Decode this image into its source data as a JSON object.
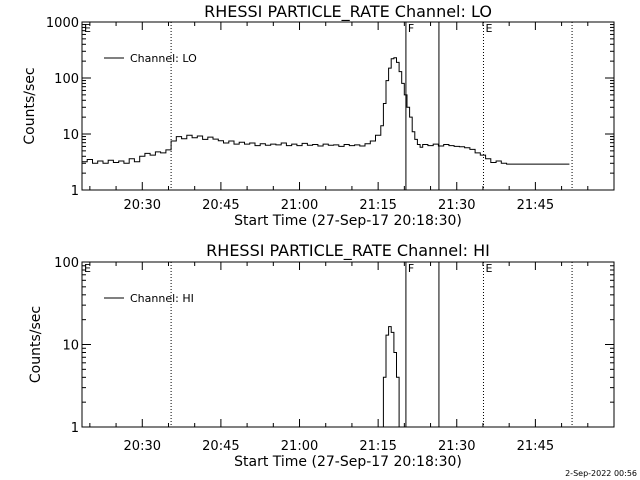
{
  "footer": {
    "timestamp": "2-Sep-2022 00:56"
  },
  "chart_data": [
    {
      "type": "line",
      "title": "RHESSI PARTICLE_RATE Channel: LO",
      "xlabel": "Start Time (27-Sep-17 20:18:30)",
      "ylabel": "Counts/sec",
      "x_unit": "minutes after 20:18:30",
      "xlim": [
        0,
        101.5
      ],
      "ylim": [
        1,
        1000
      ],
      "yscale": "log",
      "x_ticks": [
        {
          "value": 11.5,
          "label": "20:30"
        },
        {
          "value": 26.5,
          "label": "20:45"
        },
        {
          "value": 41.5,
          "label": "21:00"
        },
        {
          "value": 56.5,
          "label": "21:15"
        },
        {
          "value": 71.5,
          "label": "21:30"
        },
        {
          "value": 86.5,
          "label": "21:45"
        }
      ],
      "y_ticks": [
        {
          "value": 1,
          "label": "1"
        },
        {
          "value": 10,
          "label": "10"
        },
        {
          "value": 100,
          "label": "100"
        },
        {
          "value": 1000,
          "label": "1000"
        }
      ],
      "legend": {
        "position": "top-left",
        "entries": [
          "Channel: LO"
        ]
      },
      "markers": [
        {
          "x": 0,
          "label": "E",
          "style": "dotted"
        },
        {
          "x": 17,
          "label": "",
          "style": "dotted"
        },
        {
          "x": 61.8,
          "label": "F",
          "style": "solid"
        },
        {
          "x": 68.1,
          "label": "",
          "style": "solid"
        },
        {
          "x": 76.6,
          "label": "E",
          "style": "dotted"
        },
        {
          "x": 93.5,
          "label": "",
          "style": "dotted"
        }
      ],
      "series": [
        {
          "name": "Channel: LO",
          "x": [
            0,
            1,
            2,
            3,
            4,
            5,
            6,
            7,
            8,
            9,
            10,
            11,
            12,
            13,
            14,
            15,
            16,
            17,
            18,
            19,
            20,
            21,
            22,
            23,
            24,
            25,
            26,
            27,
            28,
            29,
            30,
            31,
            32,
            33,
            34,
            35,
            36,
            37,
            38,
            39,
            40,
            41,
            42,
            43,
            44,
            45,
            46,
            47,
            48,
            49,
            50,
            51,
            52,
            53,
            54,
            55,
            56,
            57,
            57.5,
            58,
            58.5,
            59,
            59.5,
            60,
            60.5,
            61,
            61.5,
            62,
            62.5,
            63,
            63.5,
            64,
            64.5,
            65,
            66,
            67,
            68,
            69,
            70,
            71,
            72,
            73,
            74,
            75,
            76,
            77,
            78,
            79,
            80,
            81,
            82,
            83,
            84,
            85,
            86,
            87,
            88,
            89,
            90,
            91,
            92,
            93
          ],
          "y": [
            3.2,
            3.5,
            3,
            3.3,
            3,
            3.4,
            3.1,
            3.3,
            3,
            3.6,
            3.2,
            4,
            4.5,
            4.2,
            4.8,
            4.6,
            5.2,
            7.5,
            9,
            8.2,
            9.5,
            8.6,
            9.2,
            8,
            8.8,
            8.1,
            7.6,
            6.9,
            7.5,
            6.6,
            7.1,
            6.6,
            6.9,
            6.2,
            6.7,
            6.3,
            6.6,
            6.4,
            6.9,
            6.2,
            6.6,
            6.2,
            6.8,
            6.3,
            6.5,
            6.1,
            6.6,
            6.3,
            6.4,
            6,
            6.5,
            6.2,
            6.4,
            6.1,
            6.7,
            7.5,
            9.5,
            14,
            35,
            90,
            150,
            220,
            230,
            190,
            130,
            80,
            50,
            30,
            20,
            11,
            8,
            6.5,
            5.8,
            6.5,
            6.2,
            6.6,
            6.1,
            6.5,
            6.2,
            6,
            5.9,
            5.7,
            5.3,
            4.6,
            4.2,
            3.6,
            3.1,
            3.3,
            3,
            2.9,
            2.9,
            2.9,
            2.9,
            2.9,
            2.9,
            2.9,
            2.9,
            2.9,
            2.9,
            2.9,
            2.9,
            2.9
          ]
        }
      ]
    },
    {
      "type": "line",
      "title": "RHESSI PARTICLE_RATE Channel: HI",
      "xlabel": "Start Time (27-Sep-17 20:18:30)",
      "ylabel": "Counts/sec",
      "x_unit": "minutes after 20:18:30",
      "xlim": [
        0,
        101.5
      ],
      "ylim": [
        1,
        100
      ],
      "yscale": "log",
      "x_ticks": [
        {
          "value": 11.5,
          "label": "20:30"
        },
        {
          "value": 26.5,
          "label": "20:45"
        },
        {
          "value": 41.5,
          "label": "21:00"
        },
        {
          "value": 56.5,
          "label": "21:15"
        },
        {
          "value": 71.5,
          "label": "21:30"
        },
        {
          "value": 86.5,
          "label": "21:45"
        }
      ],
      "y_ticks": [
        {
          "value": 1,
          "label": "1"
        },
        {
          "value": 10,
          "label": "10"
        },
        {
          "value": 100,
          "label": "100"
        }
      ],
      "legend": {
        "position": "top-left",
        "entries": [
          "Channel: HI"
        ]
      },
      "markers": [
        {
          "x": 0,
          "label": "E",
          "style": "dotted"
        },
        {
          "x": 17,
          "label": "",
          "style": "dotted"
        },
        {
          "x": 61.8,
          "label": "F",
          "style": "solid"
        },
        {
          "x": 68.1,
          "label": "",
          "style": "solid"
        },
        {
          "x": 76.6,
          "label": "E",
          "style": "dotted"
        },
        {
          "x": 93.5,
          "label": "",
          "style": "dotted"
        }
      ],
      "series": [
        {
          "name": "Channel: HI",
          "x": [
            57.2,
            57.5,
            58,
            58.5,
            59,
            59.5,
            60,
            60.5
          ],
          "y": [
            1,
            4,
            13,
            16.5,
            14,
            8,
            4,
            1
          ]
        }
      ]
    }
  ]
}
